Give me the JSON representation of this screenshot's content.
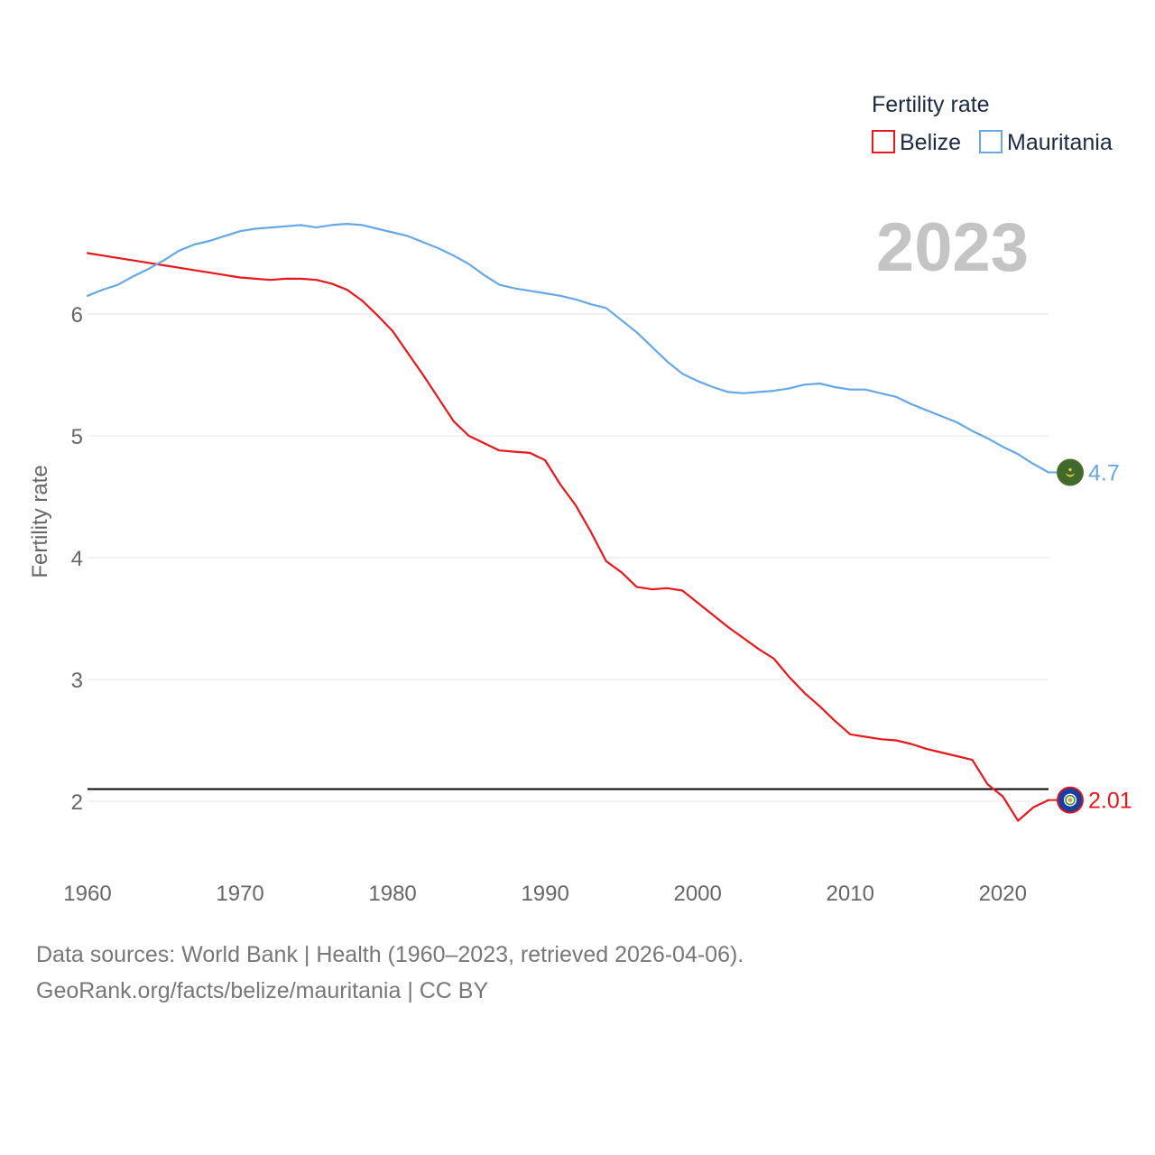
{
  "chart_data": {
    "type": "line",
    "title": "",
    "xlabel": "",
    "ylabel": "Fertility rate",
    "xlim": [
      1960,
      2023
    ],
    "ylim": [
      1.5,
      7.0
    ],
    "x_ticks": [
      "1960",
      "1970",
      "1980",
      "1990",
      "2000",
      "2010",
      "2020"
    ],
    "y_ticks": [
      "2",
      "3",
      "4",
      "5",
      "6"
    ],
    "year_label": "2023",
    "legend_title": "Fertility rate",
    "reference_line": 2.1,
    "x": [
      1960,
      1961,
      1962,
      1963,
      1964,
      1965,
      1966,
      1967,
      1968,
      1969,
      1970,
      1971,
      1972,
      1973,
      1974,
      1975,
      1976,
      1977,
      1978,
      1979,
      1980,
      1981,
      1982,
      1983,
      1984,
      1985,
      1986,
      1987,
      1988,
      1989,
      1990,
      1991,
      1992,
      1993,
      1994,
      1995,
      1996,
      1997,
      1998,
      1999,
      2000,
      2001,
      2002,
      2003,
      2004,
      2005,
      2006,
      2007,
      2008,
      2009,
      2010,
      2011,
      2012,
      2013,
      2014,
      2015,
      2016,
      2017,
      2018,
      2019,
      2020,
      2021,
      2022,
      2023
    ],
    "series": [
      {
        "name": "Belize",
        "color": "#e8171c",
        "end_label": "2.01",
        "values": [
          6.5,
          6.48,
          6.46,
          6.44,
          6.42,
          6.4,
          6.38,
          6.36,
          6.34,
          6.32,
          6.3,
          6.29,
          6.28,
          6.29,
          6.29,
          6.28,
          6.25,
          6.2,
          6.11,
          5.99,
          5.86,
          5.68,
          5.5,
          5.31,
          5.12,
          5.0,
          4.94,
          4.88,
          4.87,
          4.86,
          4.8,
          4.6,
          4.43,
          4.21,
          3.97,
          3.88,
          3.76,
          3.74,
          3.75,
          3.73,
          3.63,
          3.53,
          3.43,
          3.34,
          3.25,
          3.17,
          3.02,
          2.89,
          2.78,
          2.66,
          2.55,
          2.53,
          2.51,
          2.5,
          2.47,
          2.43,
          2.4,
          2.37,
          2.34,
          2.14,
          2.04,
          1.84,
          1.95,
          2.01
        ]
      },
      {
        "name": "Mauritania",
        "color": "#64a8e6",
        "end_label": "4.7",
        "values": [
          6.15,
          6.2,
          6.24,
          6.31,
          6.37,
          6.44,
          6.52,
          6.57,
          6.6,
          6.64,
          6.68,
          6.7,
          6.71,
          6.72,
          6.73,
          6.71,
          6.73,
          6.74,
          6.73,
          6.7,
          6.67,
          6.64,
          6.59,
          6.54,
          6.48,
          6.41,
          6.32,
          6.24,
          6.21,
          6.19,
          6.17,
          6.15,
          6.12,
          6.08,
          6.05,
          5.95,
          5.85,
          5.73,
          5.61,
          5.51,
          5.45,
          5.4,
          5.36,
          5.35,
          5.36,
          5.37,
          5.39,
          5.42,
          5.43,
          5.4,
          5.38,
          5.38,
          5.35,
          5.32,
          5.26,
          5.21,
          5.16,
          5.11,
          5.04,
          4.98,
          4.91,
          4.85,
          4.77,
          4.7
        ]
      }
    ]
  },
  "footer": {
    "sources": "Data sources: World Bank | Health (1960–2023, retrieved 2026-04-06).",
    "credit": "GeoRank.org/facts/belize/mauritania | CC BY"
  },
  "icons": {
    "belize": "belize-flag-icon",
    "mauritania": "mauritania-flag-icon"
  }
}
